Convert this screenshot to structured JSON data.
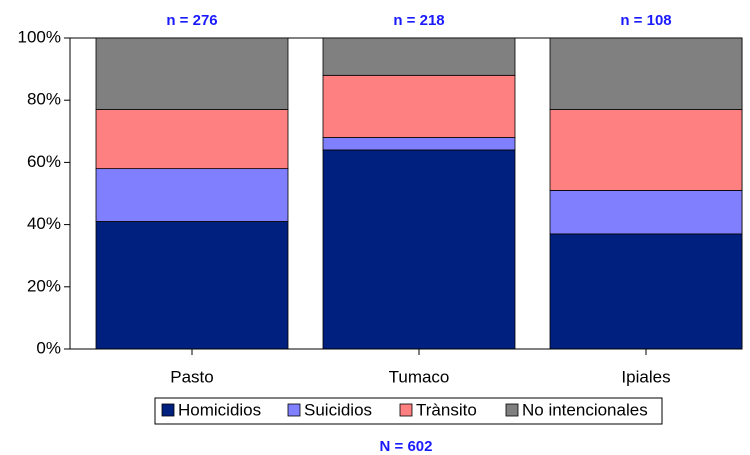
{
  "chart_data": {
    "type": "stacked_bar",
    "categories": [
      "Pasto",
      "Tumaco",
      "Ipiales"
    ],
    "series": [
      {
        "name": "Homicidios",
        "color": "#002080",
        "values": [
          41,
          64,
          37
        ]
      },
      {
        "name": "Suicidios",
        "color": "#8080ff",
        "values": [
          17,
          4,
          14
        ]
      },
      {
        "name": "Trànsito",
        "color": "#ff8080",
        "values": [
          19,
          20,
          26
        ]
      },
      {
        "name": "No intencionales",
        "color": "#808080",
        "values": [
          23,
          12,
          23
        ]
      }
    ],
    "annotations": [
      "n = 276",
      "n = 218",
      "n = 108"
    ],
    "note": "N = 602",
    "ylim": [
      0,
      100
    ],
    "yticks": [
      {
        "value": 0,
        "label": "0%"
      },
      {
        "value": 20,
        "label": "20%"
      },
      {
        "value": 40,
        "label": "40%"
      },
      {
        "value": 60,
        "label": "60%"
      },
      {
        "value": 80,
        "label": "80%"
      },
      {
        "value": 100,
        "label": "100%"
      }
    ]
  }
}
